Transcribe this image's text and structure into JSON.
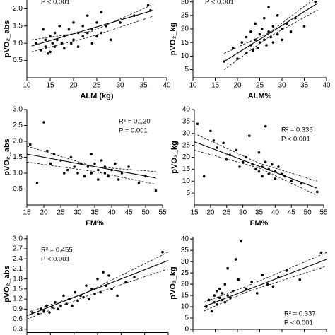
{
  "chart_data": [
    {
      "type": "scatter",
      "ylabel": "pVO₂_abs",
      "xlabel": "ALM (kg)",
      "annotations": [
        "P < 0.001"
      ],
      "xlim": [
        10,
        40
      ],
      "xticks": [
        10,
        15,
        20,
        25,
        30,
        35,
        40
      ],
      "ylim": [
        0,
        2.5
      ],
      "yticks": [
        0.5,
        {
          "value": 1,
          "label": "1.0"
        },
        1.5,
        {
          "value": 2,
          "label": "2.0"
        }
      ],
      "points": {
        "x": [
          12,
          13,
          13.5,
          14,
          14,
          14.5,
          15,
          15,
          15.5,
          16,
          16,
          16.5,
          17,
          17.5,
          18,
          18,
          19,
          19.5,
          20,
          20,
          21,
          21,
          22,
          22,
          23,
          23,
          24,
          24,
          25,
          25,
          26,
          26,
          27,
          28,
          30,
          33,
          36,
          36.5
        ],
        "values": [
          1.0,
          0.8,
          1.4,
          0.9,
          1.1,
          0.7,
          1.2,
          0.75,
          1.0,
          1.3,
          0.9,
          1.1,
          1.5,
          1.0,
          1.2,
          0.85,
          1.4,
          1.0,
          1.6,
          1.1,
          1.3,
          0.9,
          1.5,
          1.2,
          1.8,
          1.3,
          1.4,
          1.0,
          1.6,
          1.2,
          1.3,
          1.9,
          1.5,
          1.1,
          1.6,
          1.8,
          2.1,
          1.95
        ]
      },
      "fit": {
        "x": [
          11,
          37
        ],
        "values": [
          0.92,
          1.95
        ]
      },
      "ci_upper": {
        "x": [
          11,
          24,
          37
        ],
        "values": [
          1.1,
          1.35,
          2.12
        ]
      },
      "ci_lower": {
        "x": [
          11,
          24,
          37
        ],
        "values": [
          0.75,
          1.2,
          1.78
        ]
      }
    },
    {
      "type": "scatter",
      "ylabel": "pVO₂_kg",
      "xlabel": "ALM%",
      "annotations": [
        "P < 0.001"
      ],
      "xlim": [
        10,
        40
      ],
      "xticks": [
        10,
        15,
        20,
        25,
        30,
        35,
        40
      ],
      "ylim": [
        2,
        32
      ],
      "yticks": [
        5,
        10,
        15,
        20,
        25,
        30
      ],
      "points": {
        "x": [
          17,
          19,
          20,
          21,
          22,
          22,
          23,
          23,
          23.5,
          24,
          24,
          24.5,
          25,
          25,
          25.5,
          26,
          26,
          26.5,
          27,
          27,
          27.5,
          28,
          28,
          29,
          29,
          30,
          30,
          31,
          32,
          33,
          35,
          37.5
        ],
        "values": [
          8,
          13,
          9,
          15,
          11,
          17,
          14,
          19,
          12,
          16,
          22,
          13,
          18,
          15,
          20,
          16,
          24,
          14,
          19,
          28,
          17,
          21,
          15,
          18,
          25,
          20,
          16,
          22,
          19,
          24,
          21,
          30
        ]
      },
      "fit": {
        "x": [
          17,
          38
        ],
        "values": [
          8,
          29.5
        ]
      },
      "ci_upper": {
        "x": [
          17,
          27,
          38
        ],
        "values": [
          11,
          18.5,
          32
        ]
      },
      "ci_lower": {
        "x": [
          17,
          27,
          38
        ],
        "values": [
          5,
          17,
          27
        ]
      }
    },
    {
      "type": "scatter",
      "ylabel": "pVO₂_abs",
      "xlabel": "FM%",
      "annotations": [
        "R² = 0.120",
        "P = 0.001"
      ],
      "xlim": [
        15,
        55
      ],
      "xticks": [
        15,
        20,
        25,
        30,
        35,
        40,
        45,
        50,
        55
      ],
      "ylim": [
        0,
        3
      ],
      "yticks": [
        0.5,
        {
          "value": 1,
          "label": "1.0"
        },
        1.5,
        {
          "value": 2,
          "label": "2.0"
        },
        2.5,
        {
          "value": 3,
          "label": "3.0"
        }
      ],
      "points": {
        "x": [
          16,
          18,
          20,
          21,
          22,
          23,
          25,
          26,
          27,
          28,
          29,
          30,
          31,
          32,
          33,
          34,
          34,
          35,
          36,
          36,
          37,
          38,
          38,
          39,
          40,
          41,
          42,
          43,
          45,
          48,
          50,
          53
        ],
        "values": [
          1.9,
          0.7,
          2.6,
          1.7,
          1.3,
          1.6,
          1.4,
          1.0,
          1.1,
          1.5,
          1.2,
          1.0,
          1.3,
          0.9,
          1.2,
          1.6,
          1.0,
          1.3,
          0.8,
          1.1,
          1.4,
          1.0,
          1.2,
          0.9,
          1.1,
          1.3,
          0.8,
          1.0,
          1.2,
          0.7,
          0.9,
          0.45
        ]
      },
      "fit": {
        "x": [
          15,
          53
        ],
        "values": [
          1.6,
          0.85
        ]
      },
      "ci_upper": {
        "x": [
          15,
          35,
          53
        ],
        "values": [
          1.85,
          1.2,
          1.05
        ]
      },
      "ci_lower": {
        "x": [
          15,
          35,
          53
        ],
        "values": [
          1.35,
          1.05,
          0.65
        ]
      }
    },
    {
      "type": "scatter",
      "ylabel": "pVO₂_kg",
      "xlabel": "FM%",
      "annotations": [
        "R² = 0.336",
        "P < 0.001"
      ],
      "xlim": [
        15,
        55
      ],
      "xticks": [
        15,
        20,
        25,
        30,
        35,
        40,
        45,
        50,
        55
      ],
      "ylim": [
        0,
        40
      ],
      "yticks": [
        5,
        10,
        15,
        20,
        25,
        30,
        35,
        40
      ],
      "points": {
        "x": [
          16,
          18,
          20,
          21,
          22,
          24,
          25,
          26,
          28,
          29,
          30,
          31,
          32,
          33,
          34,
          35,
          35,
          36,
          36,
          37,
          37,
          38,
          38,
          39,
          40,
          40,
          41,
          42,
          43,
          45,
          48,
          53
        ],
        "values": [
          34,
          12,
          31,
          27,
          24,
          26,
          19,
          21,
          23,
          16,
          18,
          20,
          29,
          17,
          15,
          22,
          14,
          16,
          12,
          18,
          33,
          15,
          13,
          17,
          14,
          11,
          16,
          13,
          12,
          10,
          9,
          5.5
        ]
      },
      "fit": {
        "x": [
          15,
          53
        ],
        "values": [
          26.5,
          7
        ]
      },
      "ci_upper": {
        "x": [
          15,
          35,
          53
        ],
        "values": [
          30,
          17.5,
          10
        ]
      },
      "ci_lower": {
        "x": [
          15,
          35,
          53
        ],
        "values": [
          23,
          15.5,
          4
        ]
      }
    },
    {
      "type": "scatter",
      "ylabel": "pVO₂_abs",
      "annotations": [
        "R² = 0.455",
        "P < 0.001"
      ],
      "xlim": [
        20,
        70
      ],
      "ylim": [
        0.2,
        3.1
      ],
      "yticks": [
        0.3,
        0.6,
        0.9,
        1.2,
        1.5,
        1.8,
        2.1,
        2.4,
        2.7,
        {
          "value": 3,
          "label": "3.0"
        }
      ],
      "points": {
        "x": [
          22,
          24,
          25,
          26,
          27,
          28,
          29,
          30,
          31,
          32,
          33,
          34,
          35,
          36,
          37,
          38,
          39,
          40,
          41,
          42,
          43,
          44,
          45,
          46,
          47,
          48,
          49,
          50,
          52,
          55,
          58,
          68
        ],
        "values": [
          0.8,
          0.75,
          0.9,
          0.85,
          1.0,
          0.8,
          0.95,
          1.1,
          0.9,
          1.0,
          1.3,
          1.05,
          1.2,
          1.0,
          1.4,
          1.15,
          1.3,
          1.25,
          1.6,
          1.2,
          1.5,
          1.35,
          1.8,
          1.4,
          2.0,
          1.6,
          1.9,
          1.5,
          1.3,
          1.7,
          1.85,
          2.6
        ]
      },
      "fit": {
        "x": [
          20,
          70
        ],
        "values": [
          0.7,
          2.35
        ]
      },
      "ci_upper": {
        "x": [
          20,
          40,
          70
        ],
        "values": [
          0.8,
          1.35,
          2.6
        ]
      },
      "ci_lower": {
        "x": [
          20,
          40,
          70
        ],
        "values": [
          0.6,
          1.25,
          2.1
        ]
      }
    },
    {
      "type": "scatter",
      "ylabel": "pVO₂_kg",
      "annotations": [
        "R² = 0.337",
        "P < 0.001"
      ],
      "xlim": [
        20,
        70
      ],
      "ylim": [
        0,
        41
      ],
      "yticks": [
        0,
        5,
        10,
        15,
        20,
        25,
        30,
        35,
        40
      ],
      "points": {
        "x": [
          25,
          26,
          27,
          28,
          28,
          29,
          29,
          30,
          30,
          31,
          31,
          32,
          32,
          33,
          33,
          34,
          35,
          36,
          37,
          38,
          40,
          42,
          44,
          46,
          48,
          50,
          52,
          55,
          60,
          68
        ],
        "values": [
          10,
          13,
          8,
          15,
          12,
          17,
          11,
          14,
          18,
          13,
          16,
          12,
          20,
          15,
          27,
          14,
          17,
          31,
          22,
          39,
          18,
          21,
          16,
          24,
          20,
          19,
          23,
          26,
          22,
          34
        ]
      },
      "fit": {
        "x": [
          24,
          70
        ],
        "values": [
          10,
          31
        ]
      },
      "ci_upper": {
        "x": [
          24,
          40,
          70
        ],
        "values": [
          12,
          19,
          34
        ]
      },
      "ci_lower": {
        "x": [
          24,
          40,
          70
        ],
        "values": [
          8,
          16.5,
          28
        ]
      }
    }
  ]
}
